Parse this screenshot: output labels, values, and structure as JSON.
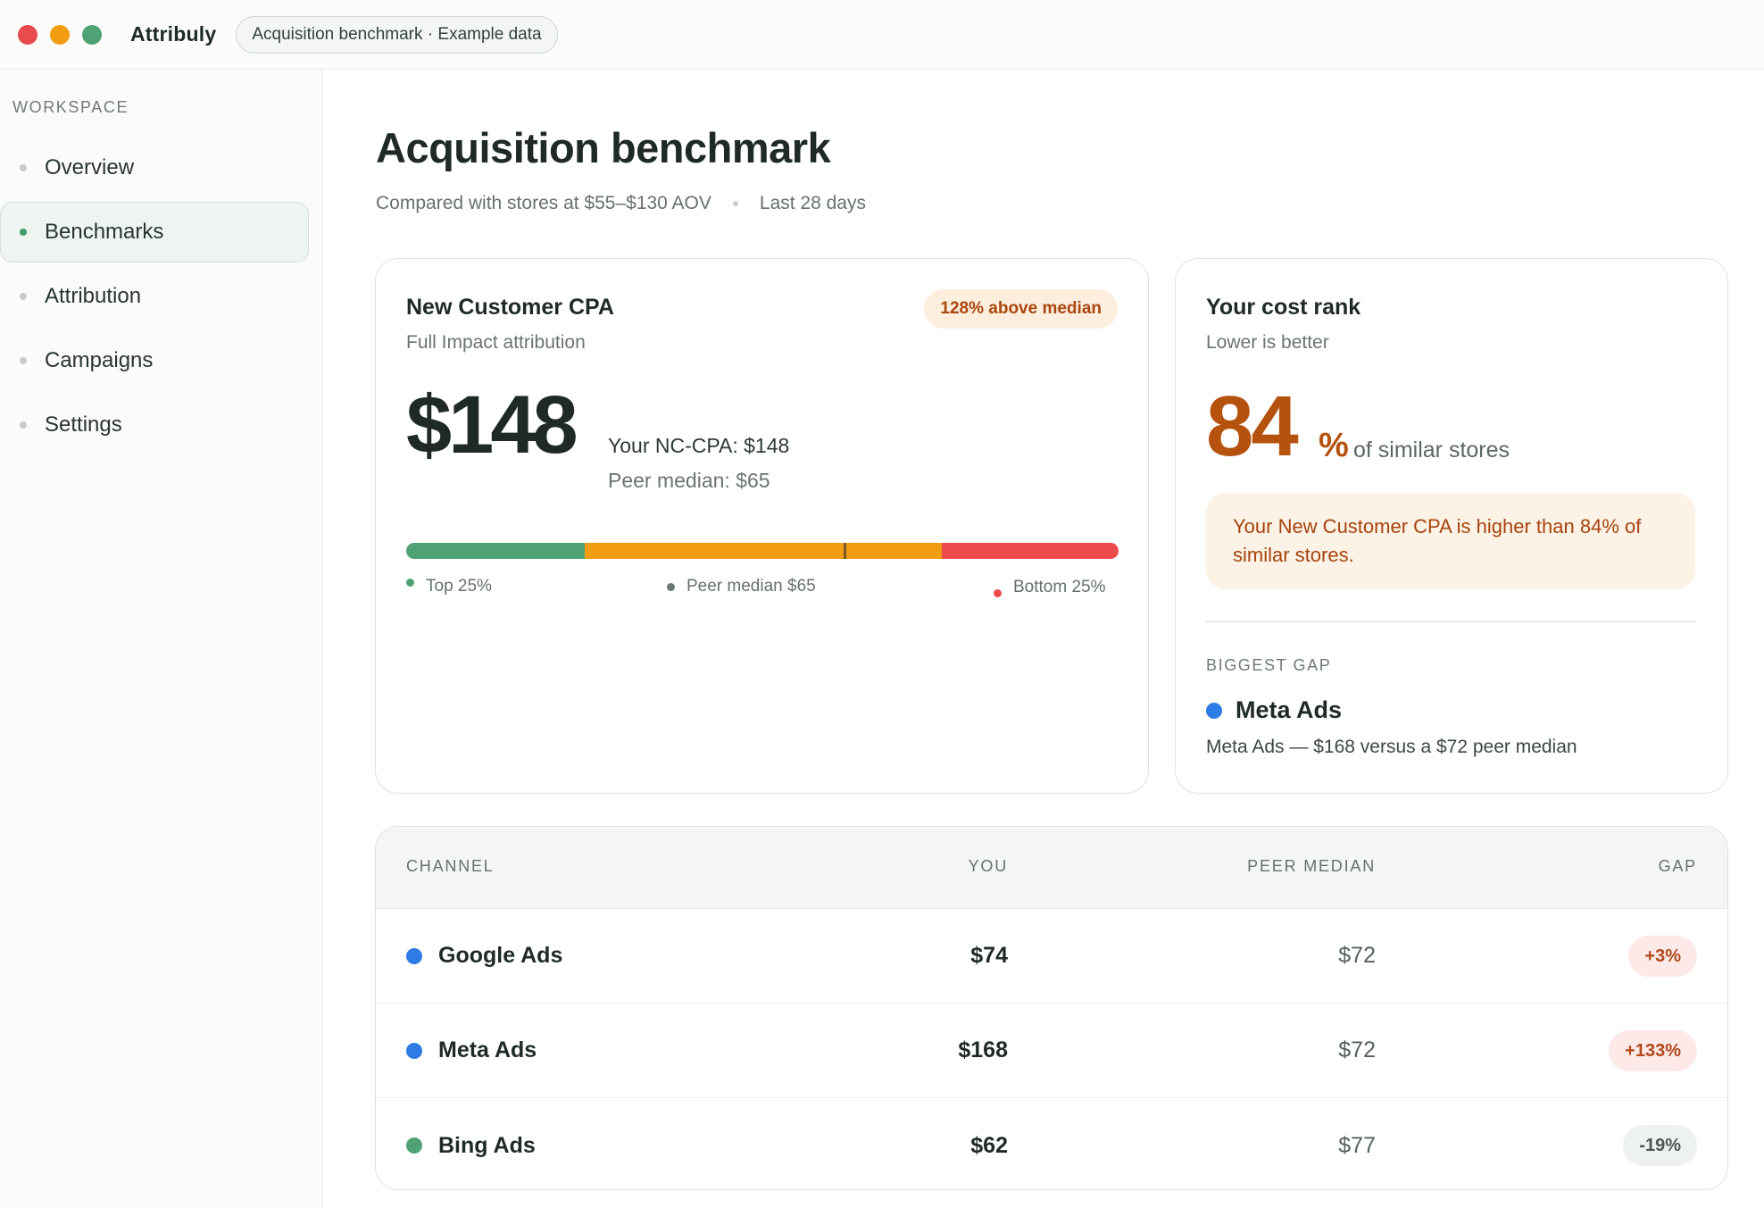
{
  "window": {
    "brand": "Attribuly",
    "tag": "Acquisition benchmark · Example data",
    "traffic_lights": [
      "#e84b4b",
      "#f29c12",
      "#4fa274"
    ]
  },
  "sidebar": {
    "heading": "WORKSPACE",
    "items": [
      {
        "label": "Overview",
        "active": false
      },
      {
        "label": "Benchmarks",
        "active": true
      },
      {
        "label": "Attribution",
        "active": false
      },
      {
        "label": "Campaigns",
        "active": false
      },
      {
        "label": "Settings",
        "active": false
      }
    ]
  },
  "header": {
    "title": "Acquisition benchmark",
    "comparison": "Compared with stores at $55–$130 AOV",
    "period": "Last 28 days"
  },
  "cpa_card": {
    "title": "New Customer CPA",
    "subtitle": "Full Impact attribution",
    "badge": "128% above median",
    "value": "$148",
    "you_line": "Your NC-CPA: $148",
    "peer_line": "Peer median: $65",
    "legend": {
      "top": "Top 25%",
      "median": "Peer median $65",
      "bottom": "Bottom 25%"
    },
    "colors": {
      "top": "#4fa274",
      "mid": "#f29c12",
      "bottom": "#ec4a4a"
    }
  },
  "rank_card": {
    "title": "Your cost rank",
    "subtitle": "Lower is better",
    "value": "84",
    "unit": "%",
    "suffix": "of similar stores",
    "callout": "Your New Customer CPA is higher than 84% of similar stores.",
    "gap_heading": "BIGGEST GAP",
    "gap_channel": "Meta Ads",
    "gap_detail": "Meta Ads — $168 versus a $72 peer median"
  },
  "table": {
    "headers": {
      "channel": "CHANNEL",
      "you": "YOU",
      "peer": "PEER MEDIAN",
      "gap": "GAP"
    },
    "rows": [
      {
        "channel": "Google Ads",
        "you": "$74",
        "peer": "$72",
        "gap": "+3%",
        "dot": "#2d7be5"
      },
      {
        "channel": "Meta Ads",
        "you": "$168",
        "peer": "$72",
        "gap": "+133%",
        "dot": "#2d7be5"
      },
      {
        "channel": "Bing Ads",
        "you": "$62",
        "peer": "$77",
        "gap": "-19%",
        "dot": "#4fa274"
      }
    ]
  }
}
